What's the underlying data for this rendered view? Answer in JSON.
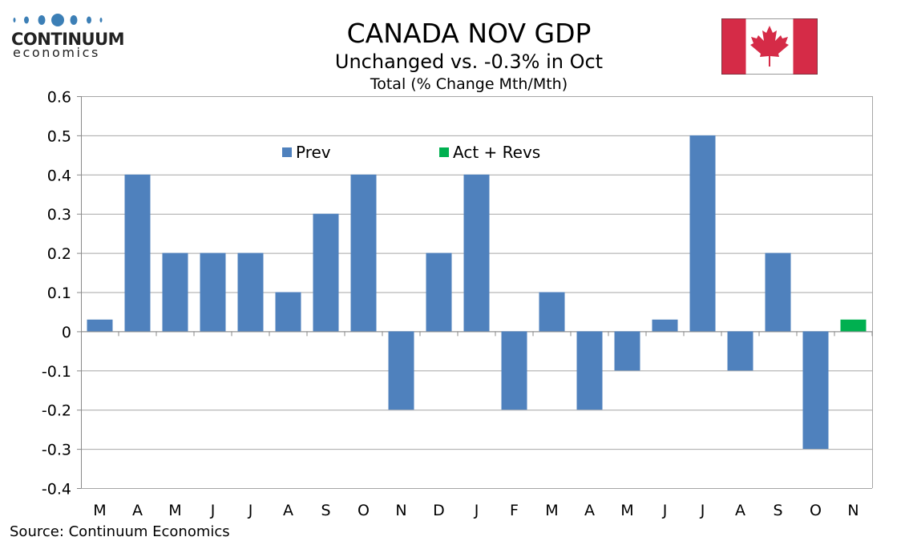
{
  "header": {
    "title": "CANADA NOV GDP",
    "subtitle": "Unchanged vs. -0.3% in Oct",
    "subtitle2": "Total (% Change Mth/Mth)"
  },
  "logo": {
    "word": "CONTINUUM",
    "sub": "economics"
  },
  "flag": "canada-flag",
  "source": "Source: Continuum Economics",
  "colors": {
    "prev": "#4F81BD",
    "act": "#00B050",
    "flag_red": "#D52B47"
  },
  "chart_data": {
    "type": "bar",
    "title": "CANADA NOV GDP",
    "categories": [
      "M",
      "A",
      "M",
      "J",
      "J",
      "A",
      "S",
      "O",
      "N",
      "D",
      "J",
      "F",
      "M",
      "A",
      "M",
      "J",
      "J",
      "A",
      "S",
      "O",
      "N"
    ],
    "series": [
      {
        "name": "Prev",
        "values": [
          0.0,
          0.4,
          0.2,
          0.2,
          0.2,
          0.1,
          0.3,
          0.4,
          -0.2,
          0.2,
          0.4,
          -0.2,
          0.1,
          -0.2,
          -0.1,
          0.0,
          0.5,
          -0.1,
          0.2,
          -0.3,
          null
        ]
      },
      {
        "name": "Act + Revs",
        "values": [
          null,
          null,
          null,
          null,
          null,
          null,
          null,
          null,
          null,
          null,
          null,
          null,
          null,
          null,
          null,
          null,
          null,
          null,
          null,
          null,
          0.0
        ]
      }
    ],
    "ylim": [
      -0.4,
      0.6
    ],
    "yticks": [
      "0.6",
      "0.5",
      "0.4",
      "0.3",
      "0.2",
      "0.1",
      "0",
      "-0.1",
      "-0.2",
      "-0.3",
      "-0.4"
    ],
    "grid": true,
    "legend": "top-center"
  }
}
